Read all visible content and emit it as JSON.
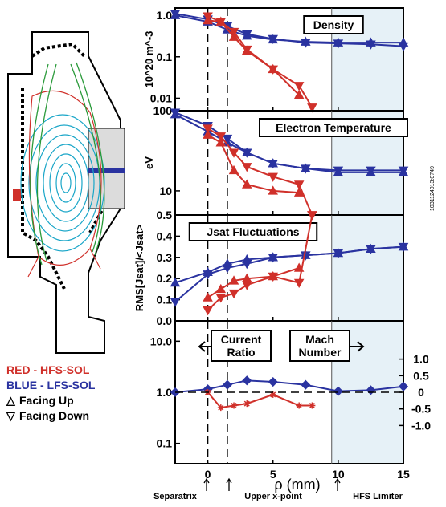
{
  "legend": {
    "red": "RED - HFS-SOL",
    "blue": "BLUE - LFS-SOL",
    "up": "Facing Up",
    "down": "Facing Down",
    "up_symbol": "△",
    "down_symbol": "▽"
  },
  "side_label": "1031124013:0749",
  "bottom_labels": {
    "separatrix": "Separatrix",
    "xpoint": "Upper x-point",
    "limiter": "HFS Limiter"
  },
  "xlabel": "ρ (mm)",
  "colors": {
    "red": "#d0302a",
    "blue": "#2a33a0",
    "shade": "#e6f1f7"
  },
  "chart_data": [
    {
      "type": "line",
      "title": "Density",
      "ylabel": "10^20 m^-3",
      "yscale": "log",
      "xlim": [
        -2.5,
        15
      ],
      "ylim": [
        0.005,
        1.5
      ],
      "yticks": [
        1.0,
        0.1,
        0.01
      ],
      "ytick_labels": [
        "1.0",
        "0.1",
        "0.01"
      ],
      "series": [
        {
          "color": "blue",
          "marker": "down",
          "x": [
            -2.5,
            0,
            1.5,
            3,
            5,
            7.5,
            10,
            12.5,
            15
          ],
          "y": [
            1.1,
            0.8,
            0.55,
            0.35,
            0.27,
            0.22,
            0.21,
            0.2,
            0.18
          ]
        },
        {
          "color": "blue",
          "marker": "up",
          "x": [
            -2.5,
            0,
            1.5,
            3,
            5,
            7.5,
            10,
            12.5,
            15
          ],
          "y": [
            1.0,
            0.7,
            0.45,
            0.32,
            0.26,
            0.23,
            0.22,
            0.22,
            0.22
          ]
        },
        {
          "color": "red",
          "marker": "down",
          "x": [
            0,
            1,
            2,
            3,
            5,
            7,
            8
          ],
          "y": [
            0.95,
            0.7,
            0.4,
            0.15,
            0.05,
            0.02,
            0.006
          ]
        },
        {
          "color": "red",
          "marker": "up",
          "x": [
            0,
            1,
            2,
            3,
            5,
            7
          ],
          "y": [
            0.75,
            0.7,
            0.3,
            0.14,
            0.05,
            0.012
          ]
        }
      ]
    },
    {
      "type": "line",
      "title": "Electron Temperature",
      "ylabel": "eV",
      "yscale": "log",
      "xlim": [
        -2.5,
        15
      ],
      "ylim": [
        5,
        100
      ],
      "yticks": [
        100,
        10
      ],
      "ytick_labels": [
        "100",
        "10"
      ],
      "series": [
        {
          "color": "blue",
          "marker": "down",
          "x": [
            -2.5,
            0,
            1.5,
            3,
            5,
            7.5,
            10,
            12.5,
            15
          ],
          "y": [
            95,
            65,
            45,
            30,
            22,
            19,
            18,
            18,
            18
          ]
        },
        {
          "color": "blue",
          "marker": "up",
          "x": [
            -2.5,
            0,
            1.5,
            3,
            5,
            7.5,
            10,
            12.5,
            15
          ],
          "y": [
            90,
            55,
            40,
            30,
            22,
            19,
            17,
            17,
            17
          ]
        },
        {
          "color": "red",
          "marker": "down",
          "x": [
            0,
            1,
            2,
            3,
            5,
            7,
            8
          ],
          "y": [
            60,
            48,
            30,
            20,
            15,
            12,
            5
          ]
        },
        {
          "color": "red",
          "marker": "up",
          "x": [
            0,
            1,
            2,
            3,
            5,
            7
          ],
          "y": [
            50,
            40,
            18,
            12,
            10,
            9.5
          ]
        }
      ]
    },
    {
      "type": "line",
      "title": "Jsat Fluctuations",
      "ylabel": "RMS[Jsat]/<Jsat>",
      "xlim": [
        -2.5,
        15
      ],
      "ylim": [
        0,
        0.5
      ],
      "yticks": [
        0.0,
        0.1,
        0.2,
        0.3,
        0.4,
        0.5
      ],
      "ytick_labels": [
        "0.0",
        "0.1",
        "0.2",
        "0.3",
        "0.4",
        "0.5"
      ],
      "series": [
        {
          "color": "blue",
          "marker": "down",
          "x": [
            -2.5,
            0,
            1.5,
            3,
            5,
            7.5,
            10,
            12.5,
            15
          ],
          "y": [
            0.09,
            0.22,
            0.25,
            0.27,
            0.3,
            0.31,
            0.32,
            0.34,
            0.35
          ]
        },
        {
          "color": "blue",
          "marker": "up",
          "x": [
            -2.5,
            0,
            1.5,
            3,
            5,
            7.5,
            10,
            12.5,
            15
          ],
          "y": [
            0.18,
            0.23,
            0.27,
            0.29,
            0.3,
            0.31,
            0.32,
            0.34,
            0.35
          ]
        },
        {
          "color": "red",
          "marker": "down",
          "x": [
            0,
            1,
            2,
            3,
            5,
            7,
            8
          ],
          "y": [
            0.05,
            0.11,
            0.13,
            0.17,
            0.21,
            0.18,
            0.5
          ]
        },
        {
          "color": "red",
          "marker": "up",
          "x": [
            0,
            1,
            2,
            3,
            5,
            7
          ],
          "y": [
            0.11,
            0.15,
            0.19,
            0.2,
            0.21,
            0.25
          ]
        }
      ]
    },
    {
      "type": "line",
      "title": "",
      "yscale": "log",
      "xlim": [
        -2.5,
        15
      ],
      "ylim": [
        0.04,
        25
      ],
      "yticks": [
        10,
        1.0,
        0.1
      ],
      "ytick_labels": [
        "10.0",
        "1.0",
        "0.1"
      ],
      "y2ticks": [
        1.0,
        0.5,
        0,
        -0.5,
        -1.0
      ],
      "y2tick_labels": [
        "1.0",
        "0.5",
        "0",
        "-0.5",
        "-1.0"
      ],
      "labels": {
        "current_ratio": "Current Ratio",
        "mach_number": "Mach Number"
      },
      "xticks": [
        0,
        5,
        10,
        15
      ],
      "xtick_labels": [
        "0",
        "5",
        "10",
        "15"
      ],
      "series": [
        {
          "color": "blue",
          "marker": "diamond",
          "x": [
            -2.5,
            0,
            1.5,
            3,
            5,
            7.5,
            10,
            12.5,
            15
          ],
          "y": [
            1.0,
            1.15,
            1.4,
            1.7,
            1.6,
            1.4,
            1.05,
            1.1,
            1.3
          ]
        },
        {
          "color": "red",
          "marker": "star",
          "x": [
            0,
            1,
            2,
            3,
            5,
            7,
            8
          ],
          "y": [
            1.0,
            0.5,
            0.55,
            0.6,
            0.9,
            0.55,
            0.55
          ]
        }
      ]
    }
  ]
}
